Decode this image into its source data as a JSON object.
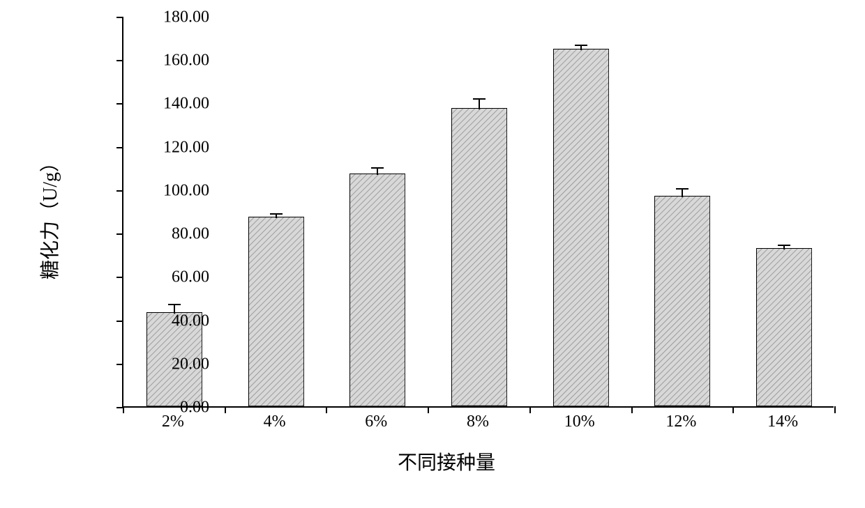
{
  "chart": {
    "type": "bar",
    "y_axis_label": "糖化力（U/g）",
    "x_axis_label": "不同接种量",
    "ylim_min": 0,
    "ylim_max": 180,
    "ytick_step": 20,
    "ytick_labels": [
      "0.00",
      "20.00",
      "40.00",
      "60.00",
      "80.00",
      "100.00",
      "120.00",
      "140.00",
      "160.00",
      "180.00"
    ],
    "categories": [
      "2%",
      "4%",
      "6%",
      "8%",
      "10%",
      "12%",
      "14%"
    ],
    "values": [
      43.5,
      87.5,
      107.5,
      137.5,
      165.0,
      97.0,
      73.0
    ],
    "errors": [
      4.0,
      2.0,
      3.0,
      5.0,
      2.0,
      4.0,
      2.0
    ],
    "bar_fill": "#c8c8c8",
    "bar_pattern": "diagonal-hatch",
    "bar_border_color": "#000000",
    "bar_border_width": 2,
    "bar_width_ratio": 0.55,
    "background_color": "#ffffff",
    "axis_color": "#000000",
    "tick_fontsize": 24,
    "label_fontsize": 28,
    "error_cap_width": 18
  }
}
